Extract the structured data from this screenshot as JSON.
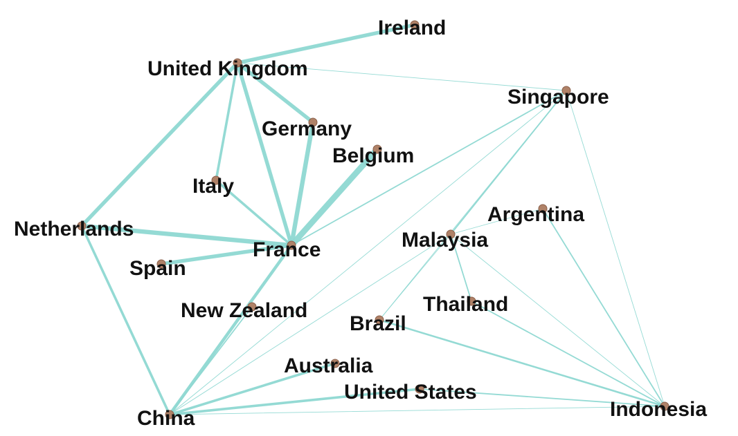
{
  "graph": {
    "nodes": [
      {
        "id": "ireland",
        "label": "Ireland"
      },
      {
        "id": "uk",
        "label": "United Kingdom"
      },
      {
        "id": "singapore",
        "label": "Singapore"
      },
      {
        "id": "germany",
        "label": "Germany"
      },
      {
        "id": "belgium",
        "label": "Belgium"
      },
      {
        "id": "italy",
        "label": "Italy"
      },
      {
        "id": "argentina",
        "label": "Argentina"
      },
      {
        "id": "netherlands",
        "label": "Netherlands"
      },
      {
        "id": "malaysia",
        "label": "Malaysia"
      },
      {
        "id": "france",
        "label": "France"
      },
      {
        "id": "spain",
        "label": "Spain"
      },
      {
        "id": "thailand",
        "label": "Thailand"
      },
      {
        "id": "newzealand",
        "label": "New Zealand"
      },
      {
        "id": "brazil",
        "label": "Brazil"
      },
      {
        "id": "australia",
        "label": "Australia"
      },
      {
        "id": "unitedstates",
        "label": "United States"
      },
      {
        "id": "indonesia",
        "label": "Indonesia"
      },
      {
        "id": "china",
        "label": "China"
      }
    ],
    "edges": [
      {
        "source": "uk",
        "target": "ireland",
        "weight": 6
      },
      {
        "source": "uk",
        "target": "singapore",
        "weight": 1
      },
      {
        "source": "uk",
        "target": "germany",
        "weight": 6
      },
      {
        "source": "uk",
        "target": "italy",
        "weight": 4
      },
      {
        "source": "uk",
        "target": "france",
        "weight": 6
      },
      {
        "source": "uk",
        "target": "netherlands",
        "weight": 6
      },
      {
        "source": "germany",
        "target": "france",
        "weight": 7
      },
      {
        "source": "belgium",
        "target": "france",
        "weight": 9
      },
      {
        "source": "italy",
        "target": "france",
        "weight": 4
      },
      {
        "source": "netherlands",
        "target": "france",
        "weight": 7
      },
      {
        "source": "spain",
        "target": "france",
        "weight": 6
      },
      {
        "source": "netherlands",
        "target": "china",
        "weight": 4
      },
      {
        "source": "france",
        "target": "china",
        "weight": 5
      },
      {
        "source": "singapore",
        "target": "france",
        "weight": 2
      },
      {
        "source": "singapore",
        "target": "china",
        "weight": 1
      },
      {
        "source": "singapore",
        "target": "malaysia",
        "weight": 2
      },
      {
        "source": "singapore",
        "target": "brazil",
        "weight": 1
      },
      {
        "source": "singapore",
        "target": "indonesia",
        "weight": 1
      },
      {
        "source": "malaysia",
        "target": "argentina",
        "weight": 1
      },
      {
        "source": "malaysia",
        "target": "thailand",
        "weight": 2
      },
      {
        "source": "malaysia",
        "target": "indonesia",
        "weight": 1
      },
      {
        "source": "malaysia",
        "target": "china",
        "weight": 1
      },
      {
        "source": "malaysia",
        "target": "brazil",
        "weight": 1
      },
      {
        "source": "argentina",
        "target": "indonesia",
        "weight": 2
      },
      {
        "source": "thailand",
        "target": "indonesia",
        "weight": 2
      },
      {
        "source": "brazil",
        "target": "indonesia",
        "weight": 3
      },
      {
        "source": "australia",
        "target": "china",
        "weight": 4
      },
      {
        "source": "unitedstates",
        "target": "china",
        "weight": 4
      },
      {
        "source": "unitedstates",
        "target": "indonesia",
        "weight": 2
      },
      {
        "source": "china",
        "target": "indonesia",
        "weight": 1
      },
      {
        "source": "newzealand",
        "target": "china",
        "weight": 2
      }
    ]
  },
  "colors": {
    "edge": "#8ed8d2",
    "node_fill": "#b08268",
    "node_stroke": "#8a5f4a",
    "label": "#111111",
    "background": "#ffffff"
  }
}
